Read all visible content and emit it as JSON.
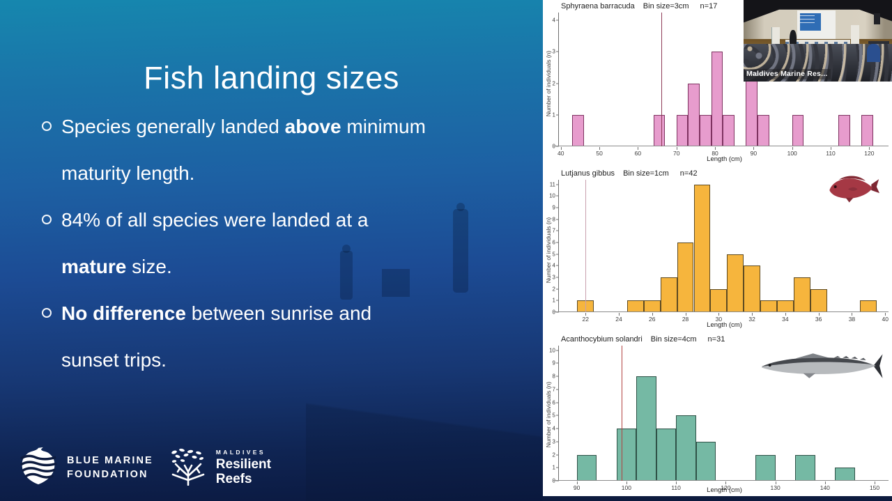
{
  "slide": {
    "title": "Fish landing sizes",
    "bullets": [
      {
        "lines": [
          [
            {
              "t": "Species generally landed "
            },
            {
              "t": "above",
              "b": true
            },
            {
              "t": " minimum"
            }
          ],
          [
            {
              "t": "maturity length."
            }
          ]
        ]
      },
      {
        "lines": [
          [
            {
              "t": "84% of all species were landed at a"
            }
          ],
          [
            {
              "t": "mature",
              "b": true
            },
            {
              "t": " size."
            }
          ]
        ]
      },
      {
        "lines": [
          [
            {
              "t": "No difference",
              "b": true
            },
            {
              "t": " between sunrise and"
            }
          ],
          [
            {
              "t": "sunset trips."
            }
          ]
        ]
      }
    ],
    "background_colors": {
      "top": "#1687ae",
      "middle": "#1c4b94",
      "bottom": "#0b1940"
    }
  },
  "logos": {
    "blue_marine": {
      "line1": "BLUE MARINE",
      "line2": "FOUNDATION"
    },
    "resilient_reefs": {
      "kicker": "MALDIVES",
      "line1": "Resilient",
      "line2": "Reefs"
    }
  },
  "video": {
    "overlay_label": "Maldives Marine Res..."
  },
  "chart_data": [
    {
      "type": "histogram",
      "species": "Sphyraena barracuda",
      "bin_label": "Bin size=3cm",
      "n_label": "n=17",
      "n": 17,
      "bin_size": 3,
      "xlabel": "Length (cm)",
      "ylabel": "Number of individuals (n)",
      "xlim": [
        39.5,
        125
      ],
      "ylim": [
        0,
        4.25
      ],
      "xticks": [
        40,
        50,
        60,
        70,
        80,
        90,
        100,
        110,
        120
      ],
      "yticks": [
        0,
        1,
        2,
        3,
        4
      ],
      "maturity_line_x": 66,
      "bins": [
        {
          "start": 43,
          "count": 1
        },
        {
          "start": 64,
          "count": 1
        },
        {
          "start": 70,
          "count": 1
        },
        {
          "start": 73,
          "count": 2
        },
        {
          "start": 76,
          "count": 1
        },
        {
          "start": 79,
          "count": 3
        },
        {
          "start": 82,
          "count": 1
        },
        {
          "start": 88,
          "count": 3
        },
        {
          "start": 91,
          "count": 1
        },
        {
          "start": 100,
          "count": 1
        },
        {
          "start": 112,
          "count": 1
        },
        {
          "start": 118,
          "count": 1
        }
      ],
      "colors": {
        "fill": "#e79ccd",
        "stroke": "#7e3260",
        "line": "#8e3a56"
      },
      "fish": null
    },
    {
      "type": "histogram",
      "species": "Lutjanus gibbus",
      "bin_label": "Bin size=1cm",
      "n_label": "n=42",
      "n": 42,
      "bin_size": 1,
      "xlabel": "Length (cm)",
      "ylabel": "Number of individuals (n)",
      "xlim": [
        20.4,
        40.2
      ],
      "ylim": [
        0,
        11.4
      ],
      "xticks": [
        22,
        24,
        26,
        28,
        30,
        32,
        34,
        36,
        38,
        40
      ],
      "yticks": [
        0,
        1,
        2,
        3,
        4,
        5,
        6,
        7,
        8,
        9,
        10,
        11
      ],
      "maturity_line_x": 22,
      "bins": [
        {
          "start": 21.5,
          "count": 1
        },
        {
          "start": 24.5,
          "count": 1
        },
        {
          "start": 25.5,
          "count": 1
        },
        {
          "start": 26.5,
          "count": 3
        },
        {
          "start": 27.5,
          "count": 6
        },
        {
          "start": 28.5,
          "count": 11
        },
        {
          "start": 29.5,
          "count": 2
        },
        {
          "start": 30.5,
          "count": 5
        },
        {
          "start": 31.5,
          "count": 4
        },
        {
          "start": 32.5,
          "count": 1
        },
        {
          "start": 33.5,
          "count": 1
        },
        {
          "start": 34.5,
          "count": 3
        },
        {
          "start": 35.5,
          "count": 2
        },
        {
          "start": 38.5,
          "count": 1
        }
      ],
      "colors": {
        "fill": "#f6b53d",
        "stroke": "#5d4a22",
        "line": "#c79fad"
      },
      "fish": "red-snapper"
    },
    {
      "type": "histogram",
      "species": "Acanthocybium solandri",
      "bin_label": "Bin size=4cm",
      "n_label": "n=31",
      "n": 31,
      "bin_size": 4,
      "xlabel": "Length (cm)",
      "ylabel": "Number of individuals (n)",
      "xlim": [
        86.4,
        152.8
      ],
      "ylim": [
        0,
        10.35
      ],
      "xticks": [
        90,
        100,
        110,
        120,
        130,
        140,
        150
      ],
      "yticks": [
        0,
        1,
        2,
        3,
        4,
        5,
        6,
        7,
        8,
        9,
        10
      ],
      "maturity_line_x": 99,
      "bins": [
        {
          "start": 90,
          "count": 2
        },
        {
          "start": 98,
          "count": 4
        },
        {
          "start": 102,
          "count": 8
        },
        {
          "start": 106,
          "count": 4
        },
        {
          "start": 110,
          "count": 5
        },
        {
          "start": 114,
          "count": 3
        },
        {
          "start": 126,
          "count": 2
        },
        {
          "start": 134,
          "count": 2
        },
        {
          "start": 142,
          "count": 1
        }
      ],
      "colors": {
        "fill": "#75b9a4",
        "stroke": "#2f5247",
        "line": "#b2403e"
      },
      "fish": "wahoo"
    }
  ]
}
